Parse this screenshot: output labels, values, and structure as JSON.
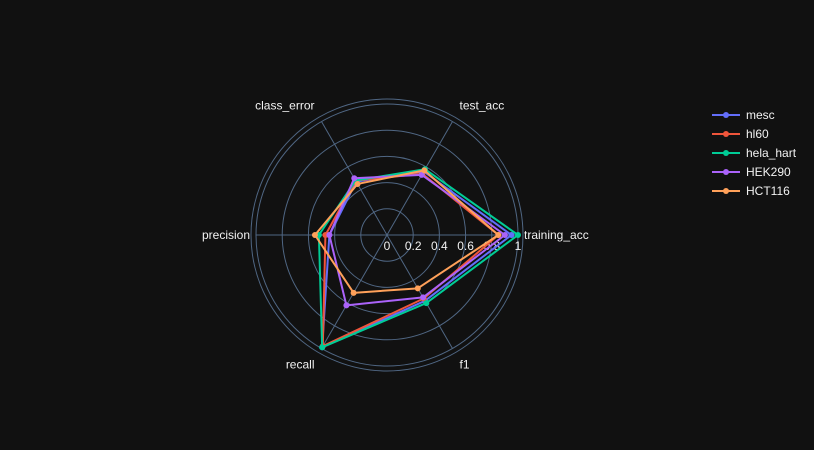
{
  "chart_data": {
    "type": "radar",
    "title": "",
    "axes": [
      "training_acc",
      "test_acc",
      "class_error",
      "precision",
      "recall",
      "f1"
    ],
    "radial_range": [
      0,
      1
    ],
    "radial_ticks": [
      0,
      0.2,
      0.4,
      0.6,
      0.8,
      1
    ],
    "radial_tick_labels": [
      "0",
      "0.2",
      "0.4",
      "0.6",
      "0.8",
      "1"
    ],
    "legend_position": "top-right",
    "series": [
      {
        "name": "mesc",
        "color": "#636efa",
        "values": [
          0.95,
          0.56,
          0.47,
          0.44,
          0.99,
          0.58
        ]
      },
      {
        "name": "hl60",
        "color": "#ef553b",
        "values": [
          0.85,
          0.54,
          0.48,
          0.47,
          0.98,
          0.56
        ]
      },
      {
        "name": "hela_hart",
        "color": "#00cc96",
        "values": [
          1.0,
          0.58,
          0.48,
          0.52,
          0.99,
          0.6
        ]
      },
      {
        "name": "HEK290",
        "color": "#ab63fa",
        "values": [
          0.9,
          0.53,
          0.5,
          0.44,
          0.62,
          0.55
        ]
      },
      {
        "name": "HCT116",
        "color": "#ffa15a",
        "values": [
          0.85,
          0.57,
          0.45,
          0.55,
          0.51,
          0.47
        ]
      }
    ]
  }
}
